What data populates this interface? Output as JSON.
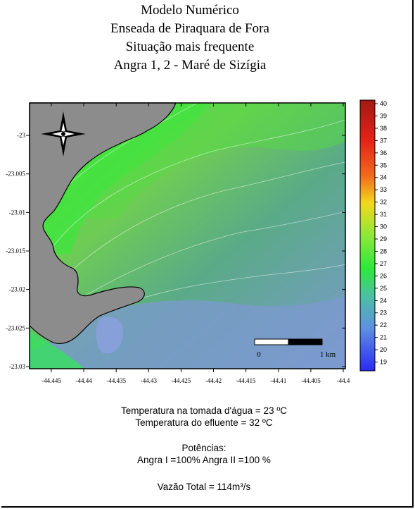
{
  "title_lines": [
    "Modelo Numérico",
    "Enseada de Piraquara de Fora",
    "Situação mais frequente",
    "Angra 1, 2 - Maré de Sizígia"
  ],
  "map": {
    "x_ticks": [
      "-44.445",
      "-44.44",
      "-44.435",
      "-44.43",
      "-44.425",
      "-44.42",
      "-44.415",
      "-44.41",
      "-44.405",
      "-44.4"
    ],
    "y_ticks": [
      "-23",
      "-23.005",
      "-23.01",
      "-23.015",
      "-23.02",
      "-23.025",
      "-23.03"
    ],
    "colorbar_ticks": [
      "40",
      "39",
      "38",
      "37",
      "36",
      "35",
      "34",
      "33",
      "32",
      "31",
      "30",
      "29",
      "28",
      "27",
      "26",
      "25",
      "24",
      "23",
      "22",
      "21",
      "20",
      "19"
    ],
    "scale_bar": {
      "start_label": "0",
      "end_label": "1 km"
    },
    "colors": {
      "land": "#8c8c8c",
      "warm_plume": "#f2e43a",
      "near_shore": "#5ee83a",
      "offshore": "#5aaa88",
      "deep": "#7c9ad0",
      "frame": "#000000"
    }
  },
  "captions": {
    "intake_temp": "Temperatura na tomada d'água = 23 ºC",
    "effluent_temp": "Temperatura do efluente = 32 ºC",
    "powers_heading": "Potências:",
    "powers_values": "Angra I =100%  Angra II =100 %",
    "flow": "Vazão Total = 114m³/s"
  }
}
